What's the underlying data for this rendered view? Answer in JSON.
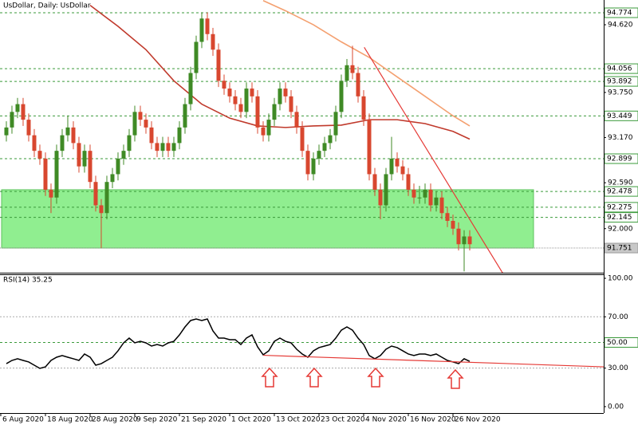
{
  "chart_data": [
    {
      "type": "candlestick",
      "title": "UsDollar, Daily:  UsDollar",
      "xlim": [
        -1.14,
        107
      ],
      "ylim": [
        91.434,
        94.938
      ],
      "candles": [
        [
          93.2,
          93.38,
          93.12,
          93.3
        ],
        [
          93.3,
          93.58,
          93.22,
          93.5
        ],
        [
          93.5,
          93.68,
          93.42,
          93.6
        ],
        [
          93.6,
          93.68,
          93.32,
          93.4
        ],
        [
          93.4,
          93.48,
          93.12,
          93.2
        ],
        [
          93.2,
          93.28,
          92.92,
          93.0
        ],
        [
          93.0,
          93.08,
          92.82,
          92.9
        ],
        [
          92.9,
          92.98,
          92.42,
          92.5
        ],
        [
          92.5,
          92.58,
          92.2,
          92.4
        ],
        [
          92.4,
          93.08,
          92.32,
          93.0
        ],
        [
          93.0,
          93.28,
          92.92,
          93.2
        ],
        [
          93.2,
          93.45,
          93.12,
          93.3
        ],
        [
          93.3,
          93.38,
          93.02,
          93.1
        ],
        [
          93.1,
          93.18,
          92.72,
          92.8
        ],
        [
          92.8,
          93.08,
          92.72,
          93.0
        ],
        [
          93.0,
          93.08,
          92.52,
          92.6
        ],
        [
          92.6,
          92.68,
          92.22,
          92.3
        ],
        [
          92.3,
          92.38,
          91.75,
          92.2
        ],
        [
          92.2,
          92.68,
          92.12,
          92.6
        ],
        [
          92.6,
          92.78,
          92.52,
          92.7
        ],
        [
          92.7,
          92.98,
          92.62,
          92.9
        ],
        [
          92.9,
          93.08,
          92.82,
          93.0
        ],
        [
          93.0,
          93.28,
          92.92,
          93.2
        ],
        [
          93.2,
          93.58,
          93.12,
          93.5
        ],
        [
          93.5,
          93.58,
          93.32,
          93.4
        ],
        [
          93.4,
          93.48,
          93.22,
          93.3
        ],
        [
          93.3,
          93.38,
          93.02,
          93.1
        ],
        [
          93.1,
          93.18,
          92.92,
          93.0
        ],
        [
          93.0,
          93.18,
          92.92,
          93.1
        ],
        [
          93.1,
          93.18,
          92.92,
          93.0
        ],
        [
          93.0,
          93.18,
          92.92,
          93.1
        ],
        [
          93.1,
          93.38,
          93.02,
          93.3
        ],
        [
          93.3,
          93.68,
          93.22,
          93.6
        ],
        [
          93.6,
          94.08,
          93.52,
          94.0
        ],
        [
          94.0,
          94.48,
          93.92,
          94.4
        ],
        [
          94.4,
          94.78,
          94.32,
          94.7
        ],
        [
          94.7,
          94.78,
          94.42,
          94.5
        ],
        [
          94.5,
          94.58,
          94.22,
          94.3
        ],
        [
          94.3,
          94.38,
          93.82,
          93.9
        ],
        [
          93.9,
          93.98,
          93.72,
          93.8
        ],
        [
          93.8,
          93.88,
          93.62,
          93.7
        ],
        [
          93.7,
          93.78,
          93.52,
          93.6
        ],
        [
          93.6,
          93.68,
          93.42,
          93.5
        ],
        [
          93.5,
          93.88,
          93.42,
          93.8
        ],
        [
          93.8,
          93.88,
          93.62,
          93.7
        ],
        [
          93.7,
          93.78,
          93.22,
          93.3
        ],
        [
          93.3,
          93.38,
          93.12,
          93.2
        ],
        [
          93.2,
          93.48,
          93.12,
          93.4
        ],
        [
          93.4,
          93.68,
          93.32,
          93.6
        ],
        [
          93.6,
          93.88,
          93.52,
          93.8
        ],
        [
          93.8,
          93.88,
          93.62,
          93.7
        ],
        [
          93.7,
          93.78,
          93.42,
          93.5
        ],
        [
          93.5,
          93.58,
          93.22,
          93.3
        ],
        [
          93.3,
          93.38,
          92.92,
          93.0
        ],
        [
          93.0,
          93.08,
          92.62,
          92.7
        ],
        [
          92.7,
          92.98,
          92.62,
          92.9
        ],
        [
          92.9,
          93.08,
          92.82,
          93.0
        ],
        [
          93.0,
          93.18,
          92.92,
          93.1
        ],
        [
          93.1,
          93.28,
          93.02,
          93.2
        ],
        [
          93.2,
          93.58,
          93.12,
          93.5
        ],
        [
          93.5,
          93.98,
          93.42,
          93.9
        ],
        [
          93.9,
          94.18,
          93.82,
          94.1
        ],
        [
          94.1,
          94.35,
          93.92,
          94.0
        ],
        [
          94.0,
          94.08,
          93.62,
          93.7
        ],
        [
          93.7,
          93.78,
          93.32,
          93.4
        ],
        [
          93.4,
          93.48,
          92.62,
          92.7
        ],
        [
          92.7,
          92.78,
          92.42,
          92.5
        ],
        [
          92.5,
          92.58,
          92.12,
          92.3
        ],
        [
          92.3,
          92.78,
          92.22,
          92.7
        ],
        [
          92.7,
          93.18,
          92.62,
          92.9
        ],
        [
          92.9,
          92.98,
          92.72,
          92.8
        ],
        [
          92.8,
          92.88,
          92.62,
          92.7
        ],
        [
          92.7,
          92.78,
          92.42,
          92.5
        ],
        [
          92.5,
          92.58,
          92.32,
          92.4
        ],
        [
          92.4,
          92.55,
          92.32,
          92.4
        ],
        [
          92.4,
          92.58,
          92.32,
          92.5
        ],
        [
          92.5,
          92.58,
          92.22,
          92.3
        ],
        [
          92.3,
          92.48,
          92.22,
          92.4
        ],
        [
          92.4,
          92.48,
          92.12,
          92.2
        ],
        [
          92.2,
          92.28,
          92.02,
          92.1
        ],
        [
          92.1,
          92.18,
          91.92,
          92.0
        ],
        [
          92.0,
          92.08,
          91.72,
          91.8
        ],
        [
          91.8,
          91.98,
          91.45,
          91.9
        ],
        [
          91.9,
          91.98,
          91.72,
          91.8
        ]
      ],
      "up_color": "#3f8a25",
      "down_color": "#d8472f",
      "lines": [
        {
          "color": "#c0392b",
          "x": [
            15,
            20,
            25,
            30,
            35,
            40,
            45,
            50,
            55,
            60,
            65,
            70,
            75,
            80,
            83
          ],
          "values": [
            94.87,
            94.6,
            94.3,
            93.9,
            93.6,
            93.42,
            93.32,
            93.3,
            93.32,
            93.33,
            93.4,
            93.4,
            93.35,
            93.25,
            93.15
          ]
        },
        {
          "color": "#f4a070",
          "x": [
            46,
            50,
            55,
            60,
            65,
            70,
            75,
            80,
            83
          ],
          "values": [
            94.93,
            94.8,
            94.62,
            94.4,
            94.2,
            93.95,
            93.7,
            93.45,
            93.32
          ]
        }
      ],
      "trendline": {
        "color": "#e53935",
        "x": [
          64.1,
          88.9
        ],
        "values": [
          94.33,
          91.43
        ]
      },
      "zone": {
        "color": "#90ee90",
        "values": [
          92.5,
          91.751
        ]
      },
      "yticks": [
        {
          "value": 94.62,
          "label": "94.620"
        },
        {
          "value": 93.75,
          "label": "93.750"
        },
        {
          "value": 93.17,
          "label": "93.170"
        },
        {
          "value": 92.59,
          "label": "92.590"
        },
        {
          "value": 92.0,
          "label": "92.000"
        }
      ],
      "levels": [
        94.774,
        94.056,
        93.892,
        93.449,
        92.899,
        92.478,
        92.275,
        92.145,
        91.751
      ],
      "xticks": [
        {
          "value": -1,
          "label": "6 Aug 2020"
        },
        {
          "value": 7,
          "label": "18 Aug 2020"
        },
        {
          "value": 15,
          "label": "28 Aug 2020"
        },
        {
          "value": 23,
          "label": "9 Sep 2020"
        },
        {
          "value": 31,
          "label": "21 Sep 2020"
        },
        {
          "value": 40,
          "label": "1 Oct 2020"
        },
        {
          "value": 48,
          "label": "13 Oct 2020"
        },
        {
          "value": 56,
          "label": "23 Oct 2020"
        },
        {
          "value": 64,
          "label": "4 Nov 2020"
        },
        {
          "value": 72,
          "label": "16 Nov 2020"
        },
        {
          "value": 80,
          "label": "26 Nov 2020"
        }
      ]
    },
    {
      "type": "line",
      "title": "RSI(14) 35.25",
      "color": "#000000",
      "xlim": [
        -1.14,
        107
      ],
      "ylim": [
        -5,
        102.5
      ],
      "values": [
        33.5,
        36,
        37.3,
        36,
        34.8,
        32.3,
        29.8,
        31,
        36,
        38.5,
        39.8,
        38.5,
        37.3,
        36,
        41,
        38.5,
        32.3,
        33.5,
        36,
        38.5,
        43.5,
        49.7,
        53.4,
        49.7,
        50.9,
        49.7,
        47.2,
        48.4,
        47.2,
        49.7,
        50.9,
        55.9,
        62.1,
        67.1,
        68.3,
        67.1,
        68.3,
        59,
        53.4,
        53.4,
        52.2,
        52.2,
        48.4,
        53.4,
        55.9,
        46.6,
        40.4,
        43.5,
        50.9,
        53.4,
        50.9,
        49.7,
        44.7,
        41,
        38.5,
        43.5,
        46,
        47.2,
        48.4,
        53.4,
        59.6,
        62.1,
        59.6,
        53.4,
        48.4,
        39.8,
        37.3,
        39.8,
        44.7,
        47.2,
        46,
        43.5,
        41,
        39.8,
        41,
        41,
        39.8,
        41,
        38.5,
        36,
        34.8,
        33.5,
        37.3,
        35.25
      ],
      "trendline": {
        "color": "#e53935",
        "x": [
          46,
          107
        ],
        "values": [
          40,
          31
        ]
      },
      "yticks": [
        {
          "value": 100,
          "label": "100.00"
        },
        {
          "value": 70,
          "label": "70.00"
        },
        {
          "value": 30,
          "label": "30.00"
        },
        {
          "value": 0,
          "label": "0.00"
        }
      ],
      "levels": [
        {
          "value": 50,
          "label": "50.00"
        }
      ]
    }
  ]
}
